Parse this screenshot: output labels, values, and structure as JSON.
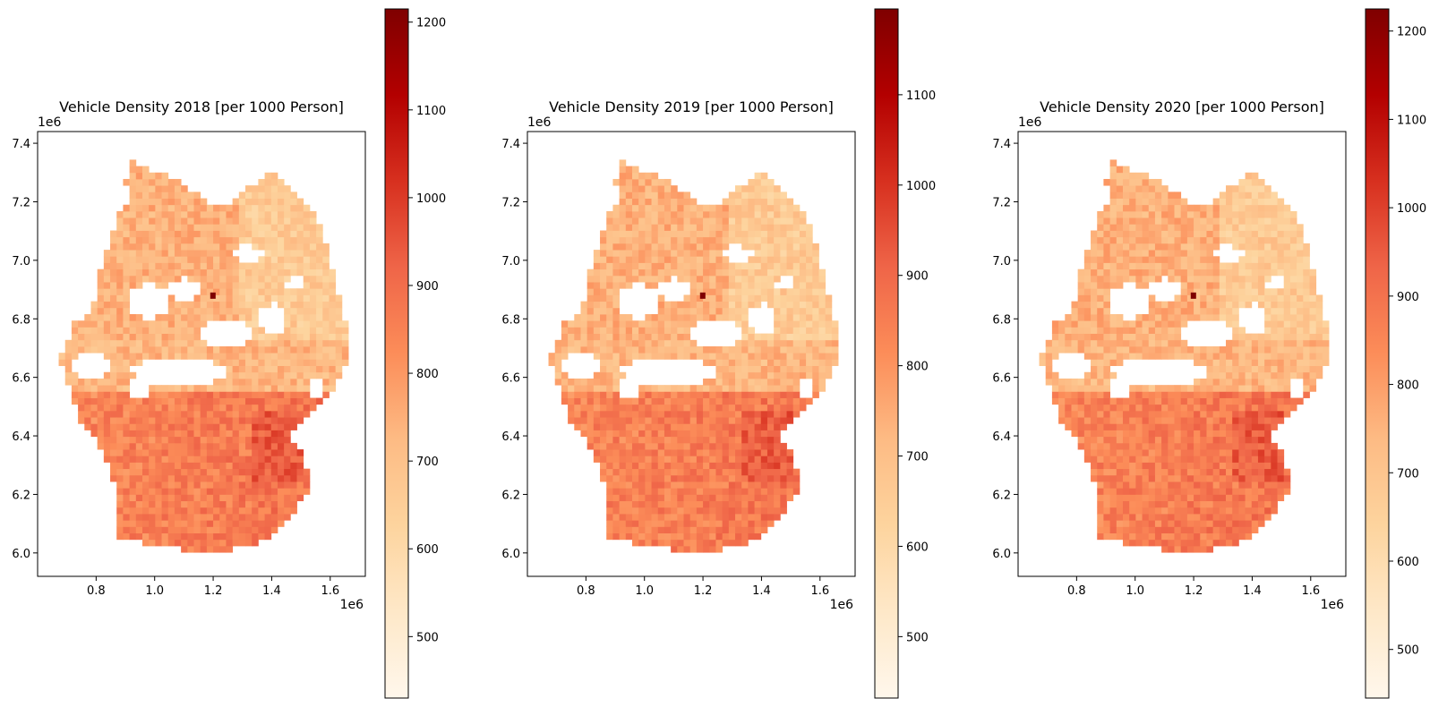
{
  "chart_data": [
    {
      "type": "choropleth-map",
      "title": "Vehicle Density 2018 [per 1000 Person]",
      "x_ticks": [
        "0.8",
        "1.0",
        "1.2",
        "1.4",
        "1.6"
      ],
      "y_ticks": [
        "6.0",
        "6.2",
        "6.4",
        "6.6",
        "6.8",
        "7.0",
        "7.2",
        "7.4"
      ],
      "x_offset_label": "1e6",
      "y_offset_label": "1e6",
      "colormap": "OrRd",
      "colorbar": {
        "min": 430,
        "max": 1215,
        "ticks": [
          "500",
          "600",
          "700",
          "800",
          "900",
          "1000",
          "1100",
          "1200"
        ]
      }
    },
    {
      "type": "choropleth-map",
      "title": "Vehicle Density 2019 [per 1000 Person]",
      "x_ticks": [
        "0.8",
        "1.0",
        "1.2",
        "1.4",
        "1.6"
      ],
      "y_ticks": [
        "6.0",
        "6.2",
        "6.4",
        "6.6",
        "6.8",
        "7.0",
        "7.2",
        "7.4"
      ],
      "x_offset_label": "1e6",
      "y_offset_label": "1e6",
      "colormap": "OrRd",
      "colorbar": {
        "min": 432,
        "max": 1195,
        "ticks": [
          "500",
          "600",
          "700",
          "800",
          "900",
          "1000",
          "1100"
        ]
      }
    },
    {
      "type": "choropleth-map",
      "title": "Vehicle Density 2020 [per 1000 Person]",
      "x_ticks": [
        "0.8",
        "1.0",
        "1.2",
        "1.4",
        "1.6"
      ],
      "y_ticks": [
        "6.0",
        "6.2",
        "6.4",
        "6.6",
        "6.8",
        "7.0",
        "7.2",
        "7.4"
      ],
      "x_offset_label": "1e6",
      "y_offset_label": "1e6",
      "colormap": "OrRd",
      "colorbar": {
        "min": 445,
        "max": 1225,
        "ticks": [
          "500",
          "600",
          "700",
          "800",
          "900",
          "1000",
          "1100",
          "1200"
        ]
      }
    }
  ]
}
